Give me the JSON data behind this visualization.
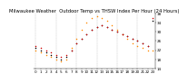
{
  "title": "Milwaukee Weather  Outdoor Temp vs THSW Index Per Hour (24 Hours)",
  "hours": [
    0,
    1,
    2,
    3,
    4,
    5,
    6,
    7,
    8,
    9,
    10,
    11,
    12,
    13,
    14,
    15,
    16,
    17,
    18,
    19,
    20,
    21,
    22,
    23
  ],
  "outdoor_temp": [
    24,
    23,
    22,
    21,
    20,
    19,
    20,
    22,
    25,
    27,
    29,
    31,
    32,
    33,
    32,
    31,
    30,
    29,
    28,
    27,
    26,
    25,
    24,
    36
  ],
  "thsw": [
    22,
    21,
    20,
    19,
    18,
    17,
    18,
    23,
    27,
    31,
    34,
    36,
    37,
    36,
    35,
    33,
    31,
    29,
    27,
    25,
    24,
    23,
    22,
    22
  ],
  "black_series": [
    23,
    22,
    21,
    20,
    19,
    18,
    19,
    22,
    25,
    27,
    29,
    31,
    32,
    33,
    32,
    31,
    30,
    29,
    28,
    27,
    26,
    25,
    24,
    35
  ],
  "temp_color": "#cc0000",
  "thsw_color": "#ff8800",
  "black_color": "#000000",
  "bg_color": "#ffffff",
  "grid_color": "#999999",
  "title_color": "#000000",
  "title_fontsize": 3.8,
  "tick_fontsize": 3.0,
  "ylim": [
    14,
    38
  ],
  "yticks": [
    14,
    18,
    22,
    26,
    30,
    34,
    38
  ],
  "marker_size": 1.2,
  "grid_every": 4
}
